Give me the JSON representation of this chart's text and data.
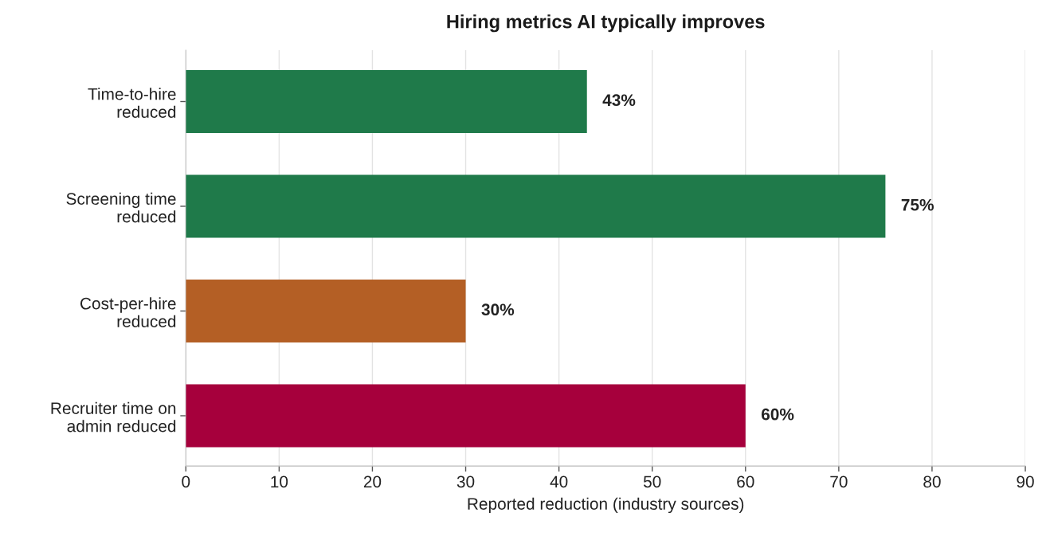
{
  "chart_data": {
    "type": "bar",
    "orientation": "horizontal",
    "title": "Hiring metrics AI typically improves",
    "xlabel": "Reported reduction (industry sources)",
    "categories": [
      "Time-to-hire\nreduced",
      "Screening time\nreduced",
      "Cost-per-hire\nreduced",
      "Recruiter time on\nadmin reduced"
    ],
    "values": [
      43,
      75,
      30,
      60
    ],
    "colors": [
      "#1f7a4a",
      "#1f7a4a",
      "#b45f25",
      "#a6003c"
    ],
    "value_labels": [
      "43%",
      "75%",
      "30%",
      "60%"
    ],
    "xlim": [
      0,
      90
    ],
    "xticks": [
      0,
      10,
      20,
      30,
      40,
      50,
      60,
      70,
      80,
      90
    ],
    "grid": "x",
    "legend": false
  }
}
